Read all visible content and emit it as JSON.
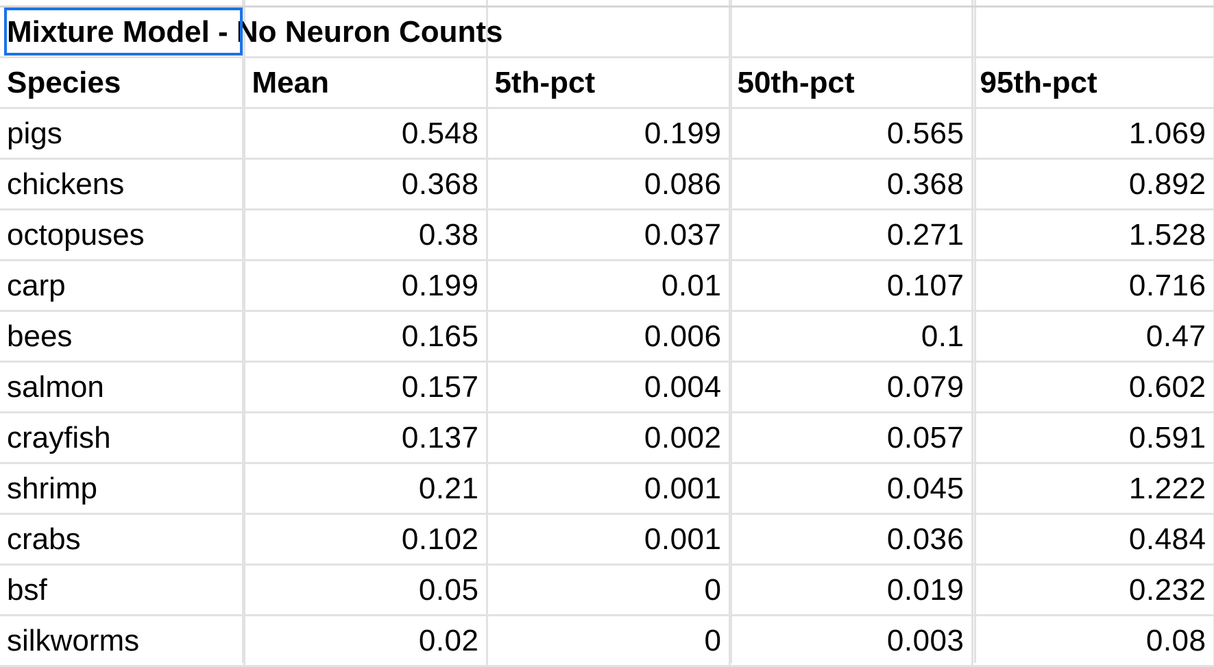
{
  "sheet": {
    "title": "Mixture Model - No Neuron Counts",
    "columns": [
      "Species",
      "Mean",
      "5th-pct",
      "50th-pct",
      "95th-pct"
    ],
    "rows": [
      {
        "species": "pigs",
        "mean": "0.548",
        "p5": "0.199",
        "p50": "0.565",
        "p95": "1.069"
      },
      {
        "species": "chickens",
        "mean": "0.368",
        "p5": "0.086",
        "p50": "0.368",
        "p95": "0.892"
      },
      {
        "species": "octopuses",
        "mean": "0.38",
        "p5": "0.037",
        "p50": "0.271",
        "p95": "1.528"
      },
      {
        "species": "carp",
        "mean": "0.199",
        "p5": "0.01",
        "p50": "0.107",
        "p95": "0.716"
      },
      {
        "species": "bees",
        "mean": "0.165",
        "p5": "0.006",
        "p50": "0.1",
        "p95": "0.47"
      },
      {
        "species": "salmon",
        "mean": "0.157",
        "p5": "0.004",
        "p50": "0.079",
        "p95": "0.602"
      },
      {
        "species": "crayfish",
        "mean": "0.137",
        "p5": "0.002",
        "p50": "0.057",
        "p95": "0.591"
      },
      {
        "species": "shrimp",
        "mean": "0.21",
        "p5": "0.001",
        "p50": "0.045",
        "p95": "1.222"
      },
      {
        "species": "crabs",
        "mean": "0.102",
        "p5": "0.001",
        "p50": "0.036",
        "p95": "0.484"
      },
      {
        "species": "bsf",
        "mean": "0.05",
        "p5": "0",
        "p50": "0.019",
        "p95": "0.232"
      },
      {
        "species": "silkworms",
        "mean": "0.02",
        "p5": "0",
        "p50": "0.003",
        "p95": "0.08"
      }
    ]
  },
  "colors": {
    "selection": "#1a73e8",
    "gridline": "#e2e2e2"
  }
}
